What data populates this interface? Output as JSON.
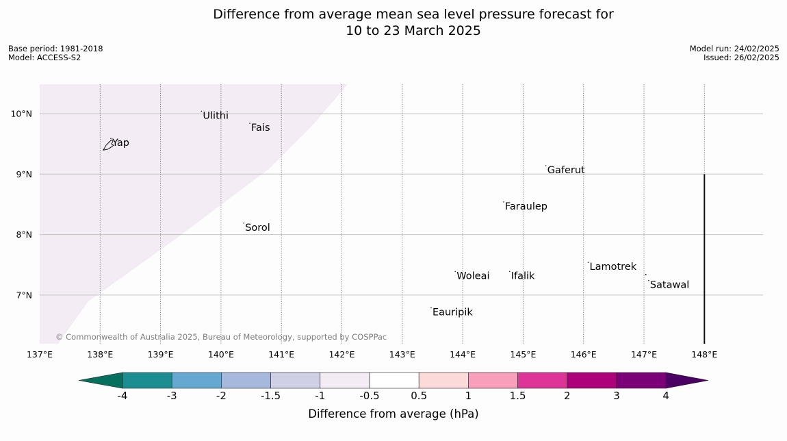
{
  "title": {
    "line1": "Difference from average mean sea level pressure forecast for",
    "line2": "10 to 23 March 2025"
  },
  "meta_left": {
    "base_period": "Base period: 1981-2018",
    "model": "Model: ACCESS-S2"
  },
  "meta_right": {
    "model_run": "Model run: 24/02/2025",
    "issued": "Issued: 26/02/2025"
  },
  "map": {
    "lon_range": [
      137,
      149
    ],
    "lat_range": [
      6.2,
      10.5
    ],
    "lon_ticks": [
      {
        "value": 137,
        "label": "137°E"
      },
      {
        "value": 138,
        "label": "138°E"
      },
      {
        "value": 139,
        "label": "139°E"
      },
      {
        "value": 140,
        "label": "140°E"
      },
      {
        "value": 141,
        "label": "141°E"
      },
      {
        "value": 142,
        "label": "142°E"
      },
      {
        "value": 143,
        "label": "143°E"
      },
      {
        "value": 144,
        "label": "144°E"
      },
      {
        "value": 145,
        "label": "145°E"
      },
      {
        "value": 146,
        "label": "146°E"
      },
      {
        "value": 147,
        "label": "147°E"
      },
      {
        "value": 148,
        "label": "148°E"
      }
    ],
    "lat_ticks": [
      {
        "value": 7,
        "label": "7°N"
      },
      {
        "value": 8,
        "label": "8°N"
      },
      {
        "value": 9,
        "label": "9°N"
      },
      {
        "value": 10,
        "label": "10°N"
      }
    ],
    "places": [
      {
        "name": "Yap",
        "lon": 138.2,
        "lat": 9.5
      },
      {
        "name": "Ulithi",
        "lon": 139.7,
        "lat": 9.95
      },
      {
        "name": "Fais",
        "lon": 140.5,
        "lat": 9.75
      },
      {
        "name": "Sorol",
        "lon": 140.4,
        "lat": 8.1
      },
      {
        "name": "Gaferut",
        "lon": 145.4,
        "lat": 9.05
      },
      {
        "name": "Faraulep",
        "lon": 144.7,
        "lat": 8.45
      },
      {
        "name": "Woleai",
        "lon": 143.9,
        "lat": 7.3
      },
      {
        "name": "Ifalik",
        "lon": 144.8,
        "lat": 7.3
      },
      {
        "name": "Lamotrek",
        "lon": 146.1,
        "lat": 7.45
      },
      {
        "name": "Satawal",
        "lon": 147.1,
        "lat": 7.15
      },
      {
        "name": "Eauripik",
        "lon": 143.5,
        "lat": 6.7
      }
    ],
    "shaded_region": {
      "category": "-1 to -0.5 hPa",
      "color": "#f4ecf5",
      "boundary": [
        [
          137,
          10.5
        ],
        [
          142.1,
          10.5
        ],
        [
          141.5,
          9.8
        ],
        [
          140.8,
          9.1
        ],
        [
          140,
          8.5
        ],
        [
          139.2,
          7.9
        ],
        [
          138.5,
          7.4
        ],
        [
          137.8,
          6.9
        ],
        [
          137.3,
          6.2
        ],
        [
          137,
          6.2
        ]
      ]
    },
    "boundary_line": {
      "lon": 148,
      "lat_from": 6.2,
      "lat_to": 9.0
    },
    "copyright": "© Commonwealth of Australia 2025, Bureau of Meteorology, supported by COSPPac"
  },
  "colorbar": {
    "title": "Difference from average (hPa)",
    "labels": [
      "-4",
      "-3",
      "-2",
      "-1.5",
      "-1",
      "-0.5",
      "0.5",
      "1",
      "1.5",
      "2",
      "3",
      "4"
    ],
    "colors": [
      "#1c8d91",
      "#65a8d0",
      "#a6b9dd",
      "#cfd0e6",
      "#f4ecf5",
      "#ffffff",
      "#fddada",
      "#f89fbc",
      "#dc3597",
      "#ad007b",
      "#7b0077"
    ],
    "extend_low_color": "#05705e",
    "extend_high_color": "#4b0064"
  }
}
